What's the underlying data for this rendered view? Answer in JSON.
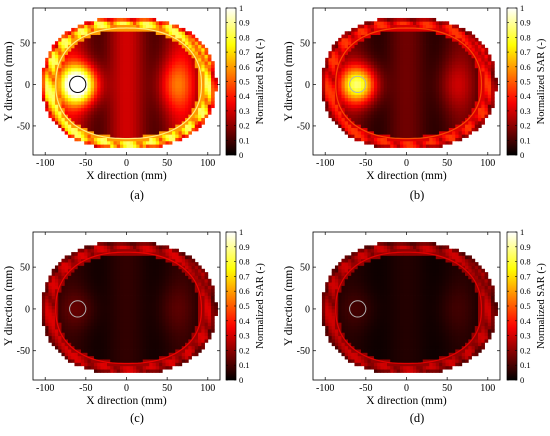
{
  "chart_data": [
    {
      "type": "heatmap",
      "panel_label": "(a)",
      "xlabel": "X direction (mm)",
      "ylabel": "Y direction (mm)",
      "colorbar_label": "Normalized SAR (-)",
      "xlim": [
        -115,
        115
      ],
      "ylim": [
        -85,
        92
      ],
      "xticks": [
        -100,
        -50,
        0,
        50,
        100
      ],
      "yticks": [
        -50,
        0,
        50
      ],
      "clim": [
        0,
        1
      ],
      "colorbar_ticks": [
        0,
        0.1,
        0.2,
        0.3,
        0.4,
        0.5,
        0.6,
        0.7,
        0.8,
        0.9,
        1
      ],
      "colormap": "hot",
      "target_center_mm": [
        -60,
        0
      ],
      "target_radius_mm": 10,
      "target_color": "#000000",
      "peak_sar": 1.0,
      "background_sar": 0.3,
      "skin_sar": 0.85
    },
    {
      "type": "heatmap",
      "panel_label": "(b)",
      "xlabel": "X direction (mm)",
      "ylabel": "Y direction (mm)",
      "colorbar_label": "Normalized SAR (-)",
      "xlim": [
        -115,
        115
      ],
      "ylim": [
        -85,
        92
      ],
      "xticks": [
        -100,
        -50,
        0,
        50,
        100
      ],
      "yticks": [
        -50,
        0,
        50
      ],
      "clim": [
        0,
        1
      ],
      "colorbar_ticks": [
        0,
        0.1,
        0.2,
        0.3,
        0.4,
        0.5,
        0.6,
        0.7,
        0.8,
        0.9,
        1
      ],
      "colormap": "hot",
      "target_center_mm": [
        -60,
        0
      ],
      "target_radius_mm": 10,
      "target_color": "#b3b3b3",
      "peak_sar": 0.72,
      "background_sar": 0.16,
      "skin_sar": 0.45
    },
    {
      "type": "heatmap",
      "panel_label": "(c)",
      "xlabel": "X direction (mm)",
      "ylabel": "Y direction (mm)",
      "colorbar_label": "Normalized SAR (-)",
      "xlim": [
        -115,
        115
      ],
      "ylim": [
        -85,
        92
      ],
      "xticks": [
        -100,
        -50,
        0,
        50,
        100
      ],
      "yticks": [
        -50,
        0,
        50
      ],
      "clim": [
        0,
        1
      ],
      "colorbar_ticks": [
        0,
        0.1,
        0.2,
        0.3,
        0.4,
        0.5,
        0.6,
        0.7,
        0.8,
        0.9,
        1
      ],
      "colormap": "hot",
      "target_center_mm": [
        -60,
        0
      ],
      "target_radius_mm": 10,
      "target_color": "#b3b3b3",
      "peak_sar": 0.08,
      "background_sar": 0.07,
      "skin_sar": 0.32
    },
    {
      "type": "heatmap",
      "panel_label": "(d)",
      "xlabel": "X direction (mm)",
      "ylabel": "Y direction (mm)",
      "colorbar_label": "Normalized SAR (-)",
      "xlim": [
        -115,
        115
      ],
      "ylim": [
        -85,
        92
      ],
      "xticks": [
        -100,
        -50,
        0,
        50,
        100
      ],
      "yticks": [
        -50,
        0,
        50
      ],
      "clim": [
        0,
        1
      ],
      "colorbar_ticks": [
        0,
        0.1,
        0.2,
        0.3,
        0.4,
        0.5,
        0.6,
        0.7,
        0.8,
        0.9,
        1
      ],
      "colormap": "hot",
      "target_center_mm": [
        -60,
        0
      ],
      "target_radius_mm": 10,
      "target_color": "#b3b3b3",
      "peak_sar": 0.05,
      "background_sar": 0.05,
      "skin_sar": 0.3
    }
  ]
}
